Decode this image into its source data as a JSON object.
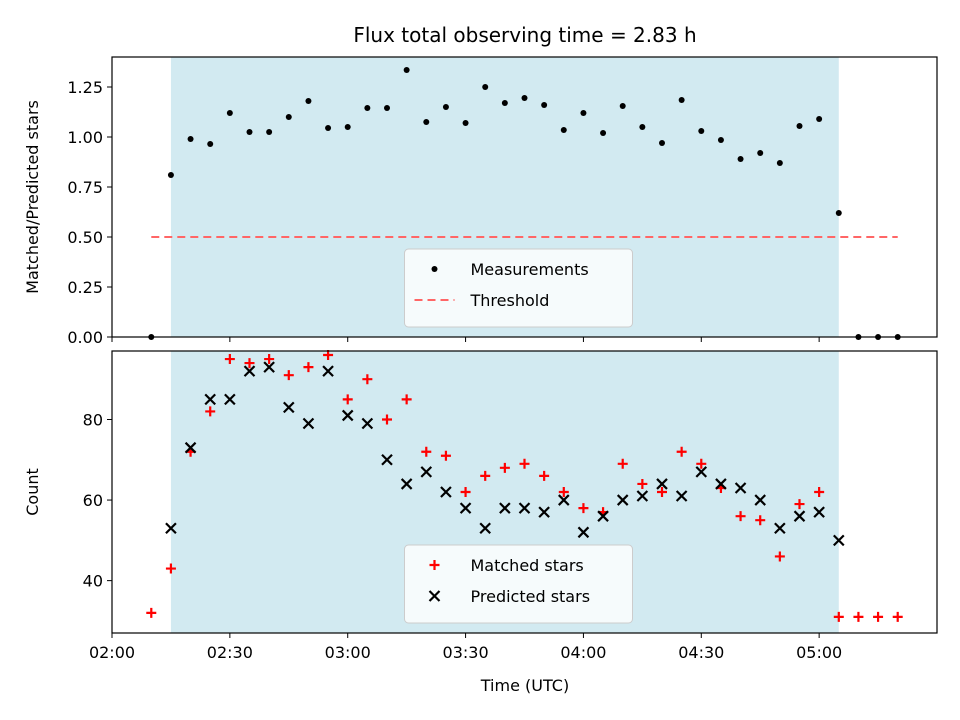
{
  "chart_data": {
    "title": "Flux total observing time = 2.83 h",
    "xlabel": "Time (UTC)",
    "x_ticks": [
      "02:00",
      "02:30",
      "03:00",
      "03:30",
      "04:00",
      "04:30",
      "05:00"
    ],
    "x_range": [
      "02:00",
      "05:30"
    ],
    "shaded_interval": [
      "02:15",
      "05:05"
    ],
    "shade_color": "#add8e6",
    "panels": [
      {
        "type": "scatter",
        "ylabel": "Matched/Predicted stars",
        "ylim": [
          0,
          1.4
        ],
        "y_ticks": [
          "0.00",
          "0.25",
          "0.50",
          "0.75",
          "1.00",
          "1.25"
        ],
        "legend_position": "bottom-center",
        "threshold": {
          "name": "Threshold",
          "value": 0.5,
          "x_range": [
            "02:10",
            "05:20"
          ],
          "color": "#ff6666"
        },
        "series": [
          {
            "name": "Measurements",
            "marker": "dot",
            "color": "#000000",
            "x": [
              "02:10",
              "02:15",
              "02:20",
              "02:25",
              "02:30",
              "02:35",
              "02:40",
              "02:45",
              "02:50",
              "02:55",
              "03:00",
              "03:05",
              "03:10",
              "03:15",
              "03:20",
              "03:25",
              "03:30",
              "03:35",
              "03:40",
              "03:45",
              "03:50",
              "03:55",
              "04:00",
              "04:05",
              "04:10",
              "04:15",
              "04:20",
              "04:25",
              "04:30",
              "04:35",
              "04:40",
              "04:45",
              "04:50",
              "04:55",
              "05:00",
              "05:05",
              "05:10",
              "05:15",
              "05:20"
            ],
            "y": [
              0.0,
              0.81,
              0.99,
              0.965,
              1.12,
              1.025,
              1.025,
              1.1,
              1.18,
              1.045,
              1.05,
              1.145,
              1.145,
              1.335,
              1.075,
              1.15,
              1.07,
              1.25,
              1.17,
              1.195,
              1.16,
              1.035,
              1.12,
              1.02,
              1.155,
              1.05,
              0.97,
              1.185,
              1.03,
              0.985,
              0.89,
              0.92,
              0.87,
              1.055,
              1.09,
              0.62,
              0.0,
              0.0,
              0.0
            ]
          }
        ]
      },
      {
        "type": "scatter",
        "ylabel": "Count",
        "ylim": [
          27,
          97
        ],
        "y_ticks": [
          "40",
          "60",
          "80"
        ],
        "legend_position": "bottom-center",
        "series": [
          {
            "name": "Matched stars",
            "marker": "plus",
            "color": "#ff0000",
            "x": [
              "02:10",
              "02:15",
              "02:20",
              "02:25",
              "02:30",
              "02:35",
              "02:40",
              "02:45",
              "02:50",
              "02:55",
              "03:00",
              "03:05",
              "03:10",
              "03:15",
              "03:20",
              "03:25",
              "03:30",
              "03:35",
              "03:40",
              "03:45",
              "03:50",
              "03:55",
              "04:00",
              "04:05",
              "04:10",
              "04:15",
              "04:20",
              "04:25",
              "04:30",
              "04:35",
              "04:40",
              "04:45",
              "04:50",
              "04:55",
              "05:00",
              "05:05",
              "05:10",
              "05:15",
              "05:20"
            ],
            "y": [
              32,
              43,
              72,
              82,
              95,
              94,
              95,
              91,
              93,
              96,
              85,
              90,
              80,
              85,
              72,
              71,
              62,
              66,
              68,
              69,
              66,
              62,
              58,
              57,
              69,
              64,
              62,
              72,
              69,
              63,
              56,
              55,
              46,
              59,
              62,
              31,
              31,
              31,
              31
            ]
          },
          {
            "name": "Predicted stars",
            "marker": "x",
            "color": "#000000",
            "x": [
              "02:15",
              "02:20",
              "02:25",
              "02:30",
              "02:35",
              "02:40",
              "02:45",
              "02:50",
              "02:55",
              "03:00",
              "03:05",
              "03:10",
              "03:15",
              "03:20",
              "03:25",
              "03:30",
              "03:35",
              "03:40",
              "03:45",
              "03:50",
              "03:55",
              "04:00",
              "04:05",
              "04:10",
              "04:15",
              "04:20",
              "04:25",
              "04:30",
              "04:35",
              "04:40",
              "04:45",
              "04:50",
              "04:55",
              "05:00",
              "05:05"
            ],
            "y": [
              53,
              73,
              85,
              85,
              92,
              93,
              83,
              79,
              92,
              81,
              79,
              70,
              64,
              67,
              62,
              58,
              53,
              58,
              58,
              57,
              60,
              52,
              56,
              60,
              61,
              64,
              61,
              67,
              64,
              63,
              60,
              53,
              56,
              57,
              50
            ]
          }
        ]
      }
    ]
  }
}
